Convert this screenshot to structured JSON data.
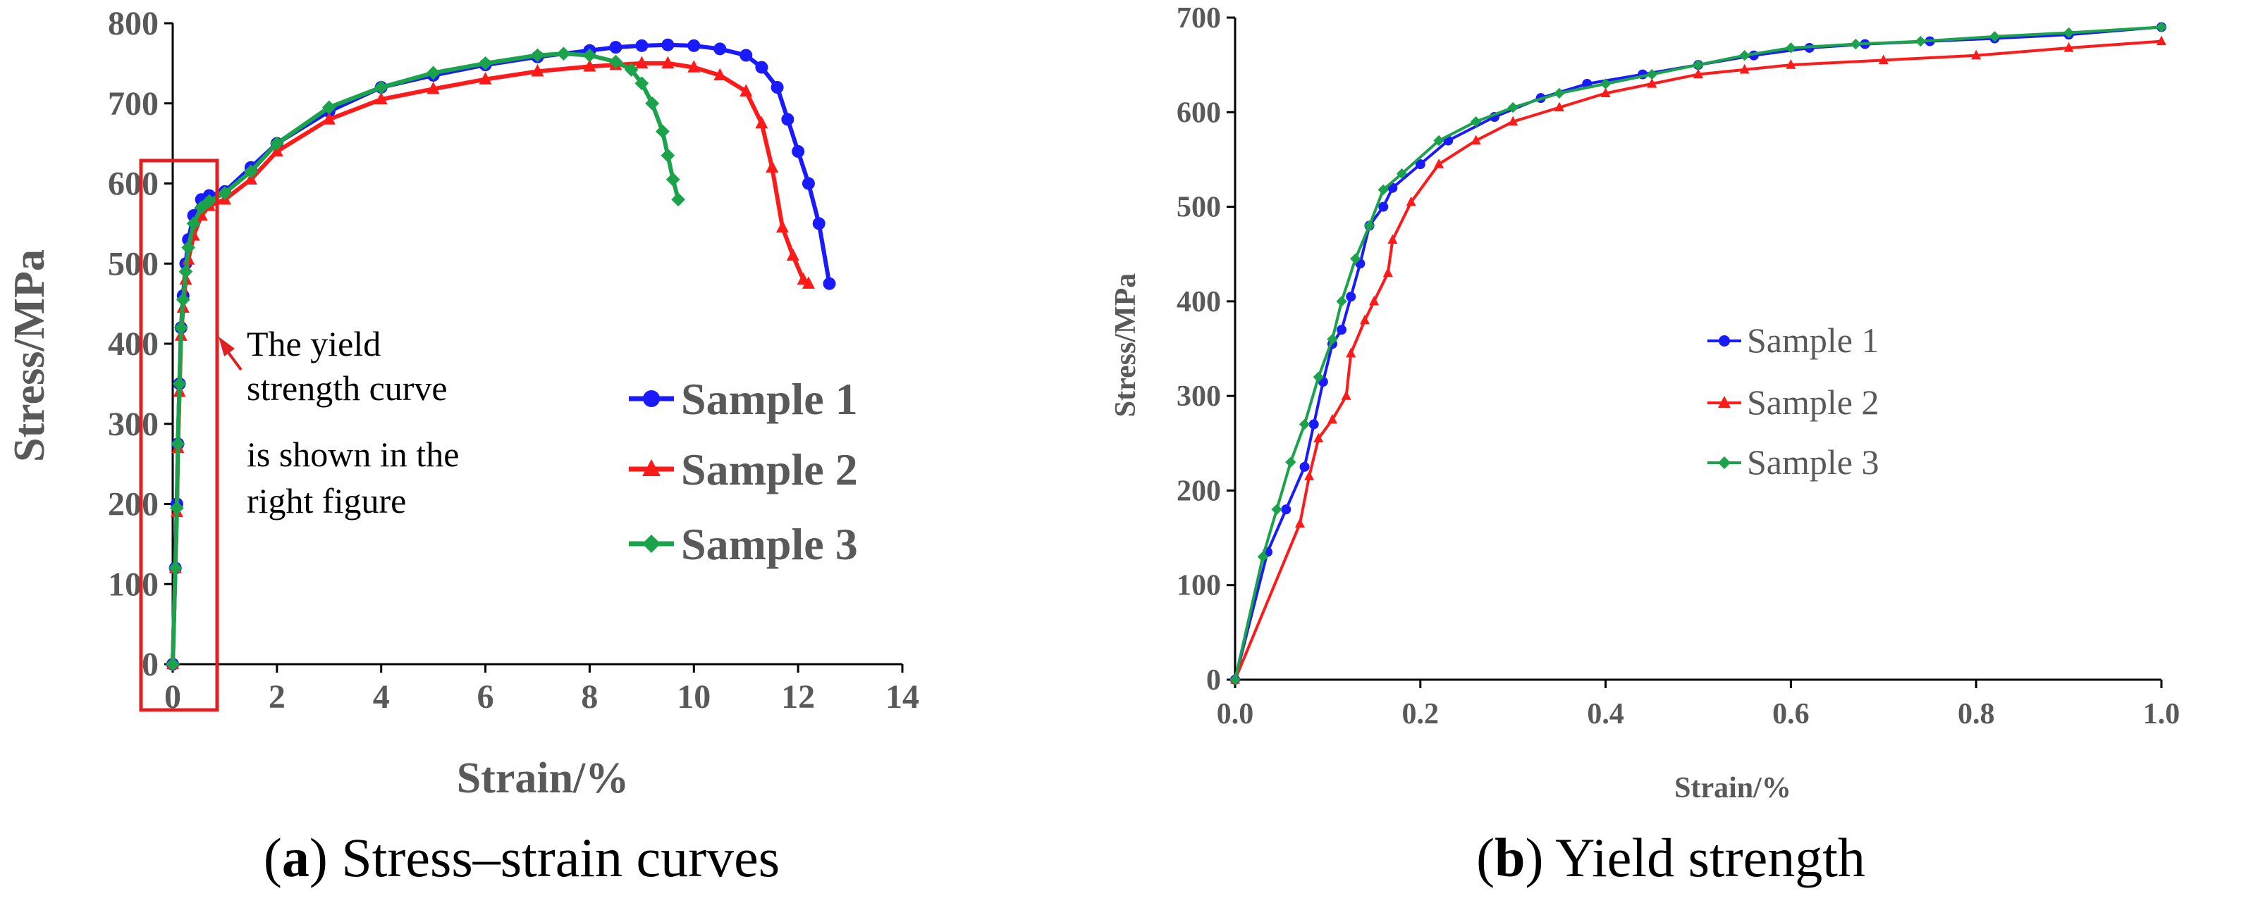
{
  "colors": {
    "sample1": "#1a1aff",
    "sample2": "#ff1a1a",
    "sample3": "#1aa34a",
    "axis": "#000000",
    "label": "#595959",
    "highlight": "#e02020"
  },
  "chart_data": [
    {
      "id": "a",
      "type": "line",
      "title": "",
      "xlabel": "Strain/%",
      "ylabel": "Stress/MPa",
      "xlim": [
        0,
        14
      ],
      "ylim": [
        0,
        800
      ],
      "xticks": [
        0,
        2,
        4,
        6,
        8,
        10,
        12,
        14
      ],
      "yticks": [
        0,
        100,
        200,
        300,
        400,
        500,
        600,
        700,
        800
      ],
      "grid": false,
      "legend_position": "right",
      "caption": {
        "label": "a",
        "text": "Stress–strain curves"
      },
      "annotation": {
        "lines": [
          "The yield",
          "strength curve",
          "is shown in the",
          "right figure"
        ]
      },
      "series": [
        {
          "name": "Sample 1",
          "color_key": "sample1",
          "marker": "circle",
          "x": [
            0,
            0.05,
            0.08,
            0.1,
            0.13,
            0.16,
            0.2,
            0.25,
            0.3,
            0.4,
            0.55,
            0.7,
            1,
            1.5,
            2,
            3,
            4,
            5,
            6,
            7,
            8,
            8.5,
            9,
            9.5,
            10,
            10.5,
            11,
            11.3,
            11.6,
            11.8,
            12,
            12.2,
            12.4,
            12.6
          ],
          "y": [
            0,
            120,
            200,
            275,
            350,
            420,
            460,
            500,
            530,
            560,
            580,
            585,
            590,
            620,
            650,
            690,
            720,
            735,
            748,
            758,
            766,
            770,
            772,
            773,
            772,
            768,
            760,
            745,
            720,
            680,
            640,
            600,
            550,
            475
          ]
        },
        {
          "name": "Sample 2",
          "color_key": "sample2",
          "marker": "triangle",
          "x": [
            0,
            0.05,
            0.08,
            0.1,
            0.13,
            0.16,
            0.2,
            0.25,
            0.3,
            0.4,
            0.55,
            0.7,
            1,
            1.5,
            2,
            3,
            4,
            5,
            6,
            7,
            8,
            8.5,
            9,
            9.5,
            10,
            10.5,
            11,
            11.3,
            11.5,
            11.7,
            11.9,
            12.1,
            12.2
          ],
          "y": [
            0,
            120,
            190,
            270,
            340,
            410,
            445,
            480,
            505,
            535,
            560,
            572,
            580,
            605,
            640,
            680,
            705,
            718,
            730,
            740,
            746,
            748,
            750,
            750,
            745,
            735,
            715,
            675,
            620,
            545,
            510,
            480,
            475
          ]
        },
        {
          "name": "Sample 3",
          "color_key": "sample3",
          "marker": "diamond",
          "x": [
            0,
            0.05,
            0.08,
            0.1,
            0.13,
            0.16,
            0.2,
            0.25,
            0.3,
            0.4,
            0.55,
            0.7,
            1,
            1.5,
            2,
            3,
            4,
            5,
            6,
            7,
            7.5,
            8,
            8.5,
            8.8,
            9,
            9.2,
            9.4,
            9.5,
            9.6,
            9.7
          ],
          "y": [
            0,
            120,
            195,
            275,
            350,
            420,
            455,
            490,
            520,
            550,
            570,
            578,
            588,
            615,
            650,
            695,
            720,
            738,
            750,
            760,
            762,
            760,
            752,
            742,
            725,
            700,
            665,
            635,
            605,
            580
          ]
        }
      ]
    },
    {
      "id": "b",
      "type": "line",
      "title": "",
      "xlabel": "Strain/%",
      "ylabel": "Stress/MPa",
      "xlim": [
        0,
        1
      ],
      "ylim": [
        0,
        700
      ],
      "xticks": [
        0.0,
        0.2,
        0.4,
        0.6,
        0.8,
        1.0
      ],
      "xtick_labels": [
        "0.0",
        "0.2",
        "0.4",
        "0.6",
        "0.8",
        "1.0"
      ],
      "yticks": [
        0,
        100,
        200,
        300,
        400,
        500,
        600,
        700
      ],
      "grid": false,
      "legend_position": "center",
      "caption": {
        "label": "b",
        "text": "Yield strength"
      },
      "series": [
        {
          "name": "Sample 1",
          "color_key": "sample1",
          "marker": "circle",
          "x": [
            0,
            0.035,
            0.055,
            0.075,
            0.085,
            0.095,
            0.105,
            0.115,
            0.125,
            0.135,
            0.145,
            0.16,
            0.17,
            0.2,
            0.23,
            0.28,
            0.33,
            0.38,
            0.44,
            0.5,
            0.56,
            0.62,
            0.68,
            0.75,
            0.82,
            0.9,
            1.0
          ],
          "y": [
            0,
            135,
            180,
            225,
            270,
            315,
            355,
            370,
            405,
            440,
            480,
            500,
            520,
            545,
            570,
            595,
            615,
            630,
            640,
            650,
            660,
            668,
            672,
            675,
            678,
            682,
            690
          ]
        },
        {
          "name": "Sample 2",
          "color_key": "sample2",
          "marker": "triangle",
          "x": [
            0,
            0.07,
            0.08,
            0.09,
            0.105,
            0.12,
            0.125,
            0.14,
            0.15,
            0.165,
            0.17,
            0.19,
            0.22,
            0.26,
            0.3,
            0.35,
            0.4,
            0.45,
            0.5,
            0.55,
            0.6,
            0.7,
            0.8,
            0.9,
            1.0
          ],
          "y": [
            0,
            165,
            215,
            255,
            275,
            300,
            345,
            380,
            400,
            430,
            465,
            505,
            545,
            570,
            590,
            605,
            620,
            630,
            640,
            645,
            650,
            655,
            660,
            668,
            675
          ]
        },
        {
          "name": "Sample 3",
          "color_key": "sample3",
          "marker": "diamond",
          "x": [
            0,
            0.03,
            0.045,
            0.06,
            0.075,
            0.09,
            0.105,
            0.115,
            0.13,
            0.145,
            0.16,
            0.18,
            0.22,
            0.26,
            0.3,
            0.35,
            0.4,
            0.45,
            0.5,
            0.55,
            0.6,
            0.67,
            0.74,
            0.82,
            0.9,
            1.0
          ],
          "y": [
            0,
            130,
            180,
            230,
            270,
            320,
            360,
            400,
            445,
            480,
            518,
            535,
            570,
            590,
            605,
            620,
            630,
            640,
            650,
            660,
            668,
            672,
            675,
            680,
            684,
            690
          ]
        }
      ]
    }
  ]
}
